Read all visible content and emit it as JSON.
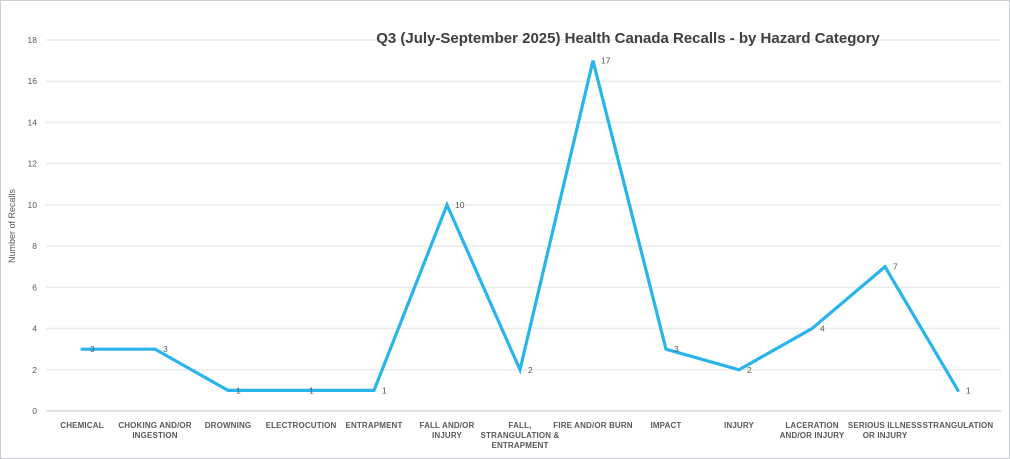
{
  "chart_data": {
    "type": "line",
    "title": "Q3 (July-September 2025) Health Canada Recalls - by Hazard Category",
    "xlabel": "",
    "ylabel": "Number of Recalls",
    "categories": [
      "CHEMICAL",
      "CHOKING AND/OR INGESTION",
      "DROWNING",
      "ELECTROCUTION",
      "ENTRAPMENT",
      "FALL AND/OR INJURY",
      "FALL, STRANGULATION & ENTRAPMENT",
      "FIRE AND/OR BURN",
      "IMPACT",
      "INJURY",
      "LACERATION AND/OR INJURY",
      "SERIOUS ILLNESS OR INJURY",
      "STRANGULATION"
    ],
    "tick_label_lines": [
      [
        "CHEMICAL"
      ],
      [
        "CHOKING AND/OR",
        "INGESTION"
      ],
      [
        "DROWNING"
      ],
      [
        "ELECTROCUTION"
      ],
      [
        "ENTRAPMENT"
      ],
      [
        "FALL AND/OR",
        "INJURY"
      ],
      [
        "FALL,",
        "STRANGULATION &",
        "ENTRAPMENT"
      ],
      [
        "FIRE AND/OR BURN"
      ],
      [
        "IMPACT"
      ],
      [
        "INJURY"
      ],
      [
        "LACERATION",
        "AND/OR INJURY"
      ],
      [
        "SERIOUS ILLNESS",
        "OR INJURY"
      ],
      [
        "STRANGULATION"
      ]
    ],
    "values": [
      3,
      3,
      1,
      1,
      1,
      10,
      2,
      17,
      3,
      2,
      4,
      7,
      1
    ],
    "data_labels": [
      "3",
      "3",
      "1",
      "1",
      "1",
      "10",
      "2",
      "17",
      "3",
      "2",
      "4",
      "7",
      "1"
    ],
    "ytick_labels": [
      "0",
      "2",
      "4",
      "6",
      "8",
      "10",
      "12",
      "14",
      "16",
      "18"
    ],
    "ylim": [
      0,
      18
    ],
    "ytick_step": 2,
    "grid": true,
    "legend": false,
    "colors": {
      "line": "#29b4ec",
      "gridline": "#ebebeb",
      "axis_line": "#d9d9d9",
      "tick_label": "#595959",
      "title": "#3f3f3f"
    }
  }
}
